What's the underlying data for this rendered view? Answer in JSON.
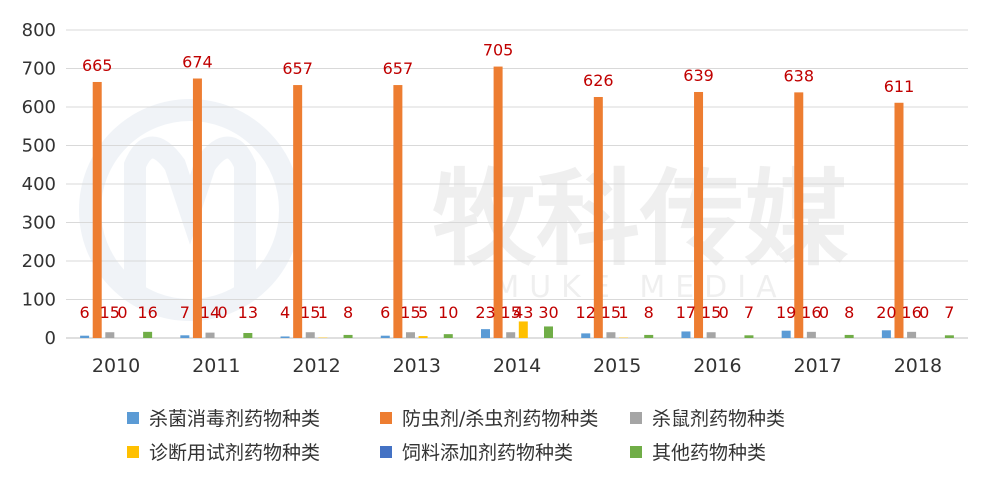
{
  "chart_data": {
    "type": "bar",
    "categories": [
      "2010",
      "2011",
      "2012",
      "2013",
      "2014",
      "2015",
      "2016",
      "2017",
      "2018"
    ],
    "series": [
      {
        "name": "杀菌消毒剂药物种类",
        "color": "#5B9BD5",
        "values": [
          6,
          7,
          4,
          6,
          23,
          12,
          17,
          19,
          20
        ]
      },
      {
        "name": "防虫剂/杀虫剂药物种类",
        "color": "#ED7D31",
        "values": [
          665,
          674,
          657,
          657,
          705,
          626,
          639,
          638,
          611
        ]
      },
      {
        "name": "杀鼠剂药物种类",
        "color": "#A5A5A5",
        "values": [
          15,
          14,
          15,
          15,
          15,
          15,
          15,
          16,
          16
        ]
      },
      {
        "name": "诊断用试剂药物种类",
        "color": "#FFC000",
        "values": [
          0,
          0,
          1,
          5,
          43,
          1,
          0,
          0,
          0
        ]
      },
      {
        "name": "饲料添加剂药物种类",
        "color": "#4472C4",
        "values": [
          0,
          0,
          0,
          0,
          0,
          0,
          0,
          0,
          0
        ]
      },
      {
        "name": "其他药物种类",
        "color": "#70AD47",
        "values": [
          16,
          13,
          8,
          10,
          30,
          8,
          7,
          8,
          7
        ]
      }
    ],
    "data_labels": [
      [
        "6",
        "665",
        "15",
        "0",
        null,
        "16"
      ],
      [
        "7",
        "674",
        "14",
        "0",
        null,
        "13"
      ],
      [
        "4",
        "657",
        "15",
        "1",
        null,
        "8"
      ],
      [
        "6",
        "657",
        "15",
        "5",
        null,
        "10"
      ],
      [
        "23",
        "705",
        "15",
        "43",
        null,
        "30"
      ],
      [
        "12",
        "626",
        "15",
        "1",
        null,
        "8"
      ],
      [
        "17",
        "639",
        "15",
        "0",
        null,
        "7"
      ],
      [
        "19",
        "638",
        "16",
        "0",
        null,
        "8"
      ],
      [
        "20",
        "611",
        "16",
        "0",
        null,
        "7"
      ]
    ],
    "yticks": [
      "0",
      "100",
      "200",
      "300",
      "400",
      "500",
      "600",
      "700",
      "800"
    ],
    "ylim": [
      0,
      800
    ],
    "grid": true,
    "legend_position": "bottom",
    "label_color": "#C00000"
  },
  "watermark": {
    "text": "牧科传媒",
    "subtext": "MUKE MEDIA"
  }
}
